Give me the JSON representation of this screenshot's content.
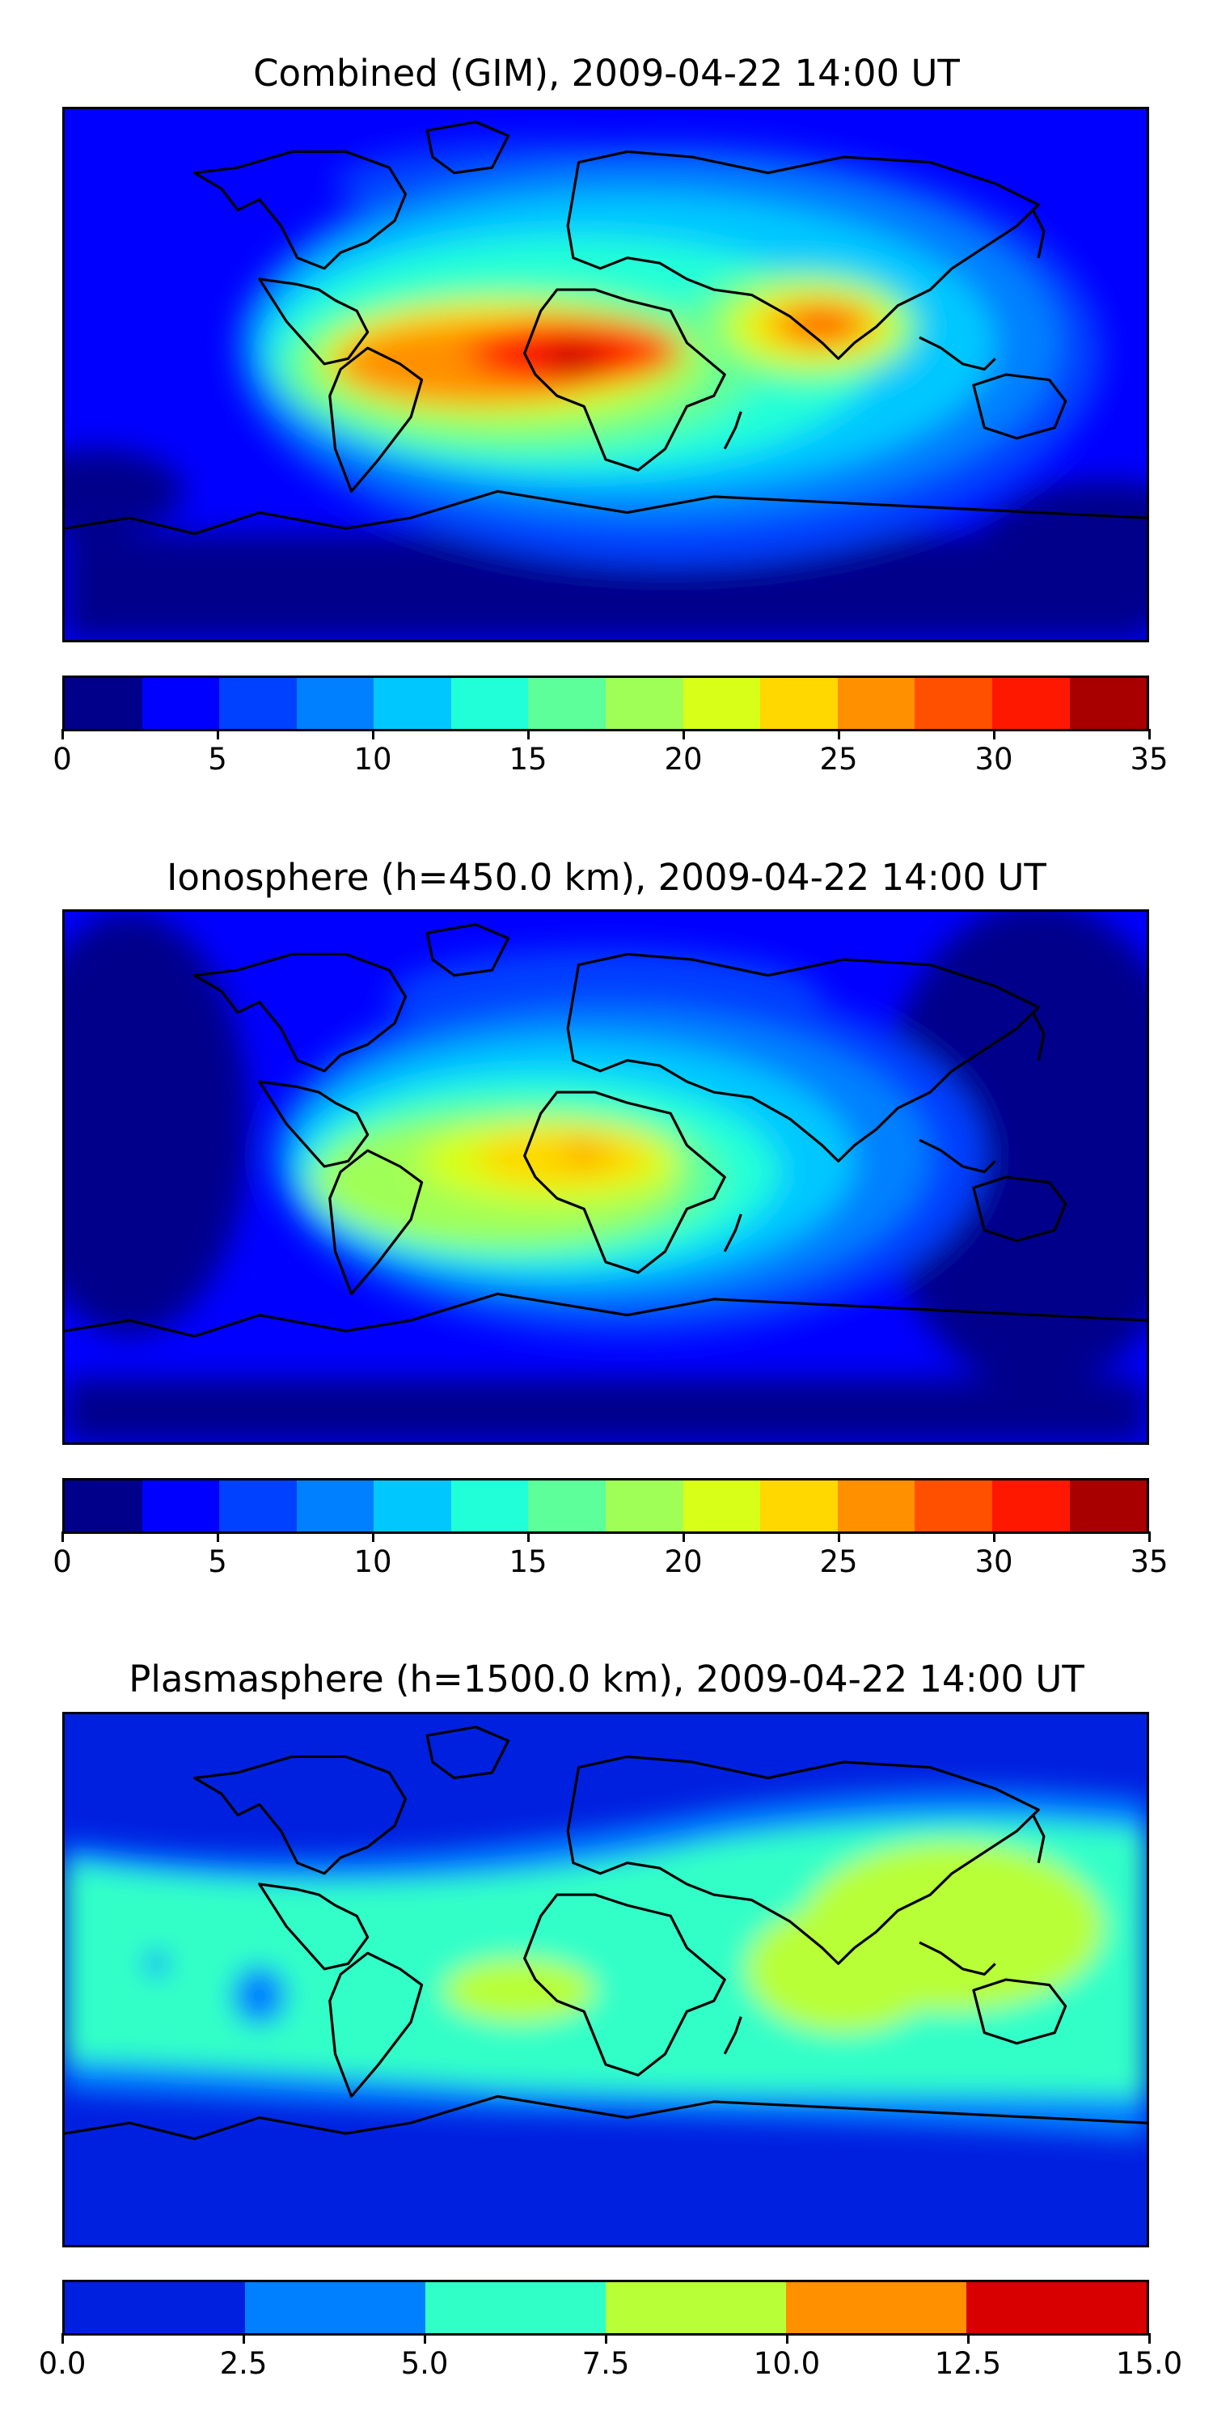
{
  "chart_data": [
    {
      "type": "heatmap",
      "title": "Combined (GIM), 2009-04-22 14:00 UT",
      "map": "world-coastlines",
      "colorbar": {
        "range": [
          0,
          35
        ],
        "levels": [
          0,
          2.5,
          5,
          7.5,
          10,
          12.5,
          15,
          17.5,
          20,
          22.5,
          25,
          27.5,
          30,
          32.5,
          35
        ],
        "tick_values": [
          0,
          5,
          10,
          15,
          20,
          25,
          30,
          35
        ],
        "tick_labels": [
          "0",
          "5",
          "10",
          "15",
          "20",
          "25",
          "30",
          "35"
        ],
        "colors": [
          "#00008b",
          "#0000ff",
          "#0040ff",
          "#0080ff",
          "#00c8ff",
          "#20ffd8",
          "#5dff9a",
          "#a0ff56",
          "#d8ff18",
          "#ffd800",
          "#ff9000",
          "#ff5000",
          "#ff1800",
          "#a80000"
        ]
      },
      "peak": {
        "value": 33,
        "location": "Gulf of Guinea / West Africa"
      }
    },
    {
      "type": "heatmap",
      "title": "Ionosphere  (h=450.0 km), 2009-04-22 14:00 UT",
      "map": "world-coastlines",
      "colorbar": {
        "range": [
          0,
          35
        ],
        "levels": [
          0,
          2.5,
          5,
          7.5,
          10,
          12.5,
          15,
          17.5,
          20,
          22.5,
          25,
          27.5,
          30,
          32.5,
          35
        ],
        "tick_values": [
          0,
          5,
          10,
          15,
          20,
          25,
          30,
          35
        ],
        "tick_labels": [
          "0",
          "5",
          "10",
          "15",
          "20",
          "25",
          "30",
          "35"
        ],
        "colors": [
          "#00008b",
          "#0000ff",
          "#0040ff",
          "#0080ff",
          "#00c8ff",
          "#20ffd8",
          "#5dff9a",
          "#a0ff56",
          "#d8ff18",
          "#ffd800",
          "#ff9000",
          "#ff5000",
          "#ff1800",
          "#a80000"
        ]
      },
      "peak": {
        "value": 27,
        "location": "Gulf of Guinea / West Africa"
      }
    },
    {
      "type": "heatmap",
      "title": "Plasmasphere (h=1500.0 km), 2009-04-22 14:00 UT",
      "map": "world-coastlines",
      "colorbar": {
        "range": [
          0,
          15
        ],
        "levels": [
          0,
          2.5,
          5,
          7.5,
          10,
          12.5,
          15
        ],
        "tick_values": [
          0,
          2.5,
          5,
          7.5,
          10,
          12.5,
          15
        ],
        "tick_labels": [
          "0.0",
          "2.5",
          "5.0",
          "7.5",
          "10.0",
          "12.5",
          "15.0"
        ],
        "colors": [
          "#0020e0",
          "#0080ff",
          "#30ffc8",
          "#b8ff38",
          "#ff9000",
          "#d80000"
        ]
      },
      "peak": {
        "value": 9,
        "location": "Asia / Western Pacific"
      }
    }
  ]
}
